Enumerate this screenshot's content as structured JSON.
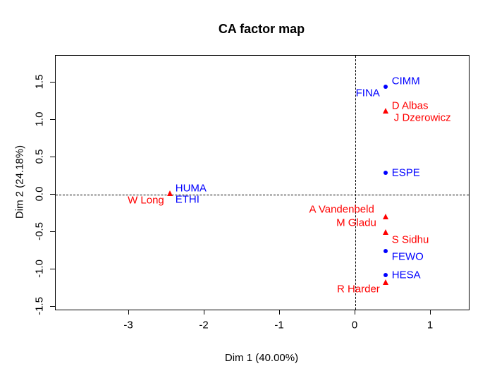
{
  "chart_data": {
    "type": "scatter",
    "title": "CA factor map",
    "xlabel": "Dim 1 (40.00%)",
    "ylabel": "Dim 2 (24.18%)",
    "xlim": [
      -3.97,
      1.5
    ],
    "ylim": [
      -1.54,
      1.86
    ],
    "x_ticks": [
      "-3",
      "-2",
      "-1",
      "0",
      "1"
    ],
    "y_ticks": [
      "1.5",
      "1.0",
      "0.5",
      "0.0",
      "-0.5",
      "-1.0",
      "-1.5"
    ],
    "grid": false,
    "legend": "none",
    "reference_lines": {
      "vertical_x": 0,
      "horizontal_y": 0,
      "line_style": "dashed"
    },
    "series": [
      {
        "name": "committees",
        "color": "#0000FF",
        "marker": "circle",
        "points": [
          {
            "label": "CIMM",
            "x": 0.4,
            "y": 1.44,
            "marker_visible": true,
            "label_side": "right",
            "label_dx": 9,
            "label_dy": -8
          },
          {
            "label": "FINA",
            "x": 0.4,
            "y": 1.44,
            "marker_visible": false,
            "label_side": "left",
            "label_dx": -8,
            "label_dy": 9
          },
          {
            "label": "ESPE",
            "x": 0.4,
            "y": 0.29,
            "marker_visible": true,
            "label_side": "right",
            "label_dx": 9,
            "label_dy": 0
          },
          {
            "label": "HUMA",
            "x": -2.46,
            "y": 0.02,
            "marker_visible": false,
            "label_side": "right",
            "label_dx": 8,
            "label_dy": -7
          },
          {
            "label": "ETHI",
            "x": -2.46,
            "y": 0.02,
            "marker_visible": false,
            "label_side": "right",
            "label_dx": 8,
            "label_dy": 9
          },
          {
            "label": "FEWO",
            "x": 0.4,
            "y": -0.75,
            "marker_visible": true,
            "label_side": "right",
            "label_dx": 9,
            "label_dy": 8
          },
          {
            "label": "HESA",
            "x": 0.4,
            "y": -1.08,
            "marker_visible": true,
            "label_side": "right",
            "label_dx": 9,
            "label_dy": 0
          }
        ]
      },
      {
        "name": "members",
        "color": "#FF0000",
        "marker": "triangle",
        "points": [
          {
            "label": "D Albas",
            "x": 0.4,
            "y": 1.12,
            "marker_visible": true,
            "label_side": "right",
            "label_dx": 9,
            "label_dy": -7
          },
          {
            "label": "J Dzerowicz",
            "x": 0.4,
            "y": 1.12,
            "marker_visible": false,
            "label_side": "right",
            "label_dx": 12,
            "label_dy": 10
          },
          {
            "label": "W Long",
            "x": -2.46,
            "y": 0.02,
            "marker_visible": true,
            "label_side": "left",
            "label_dx": -8,
            "label_dy": 10
          },
          {
            "label": "A Vandenbeld",
            "x": 0.4,
            "y": -0.29,
            "marker_visible": true,
            "label_side": "left",
            "label_dx": -16,
            "label_dy": -10
          },
          {
            "label": "M Gladu",
            "x": 0.4,
            "y": -0.29,
            "marker_visible": false,
            "label_side": "left",
            "label_dx": -13,
            "label_dy": 9
          },
          {
            "label": "S Sidhu",
            "x": 0.4,
            "y": -0.5,
            "marker_visible": true,
            "label_side": "right",
            "label_dx": 9,
            "label_dy": 11
          },
          {
            "label": "R Harder",
            "x": 0.4,
            "y": -1.17,
            "marker_visible": true,
            "label_side": "left",
            "label_dx": -8,
            "label_dy": 10
          }
        ]
      }
    ]
  }
}
